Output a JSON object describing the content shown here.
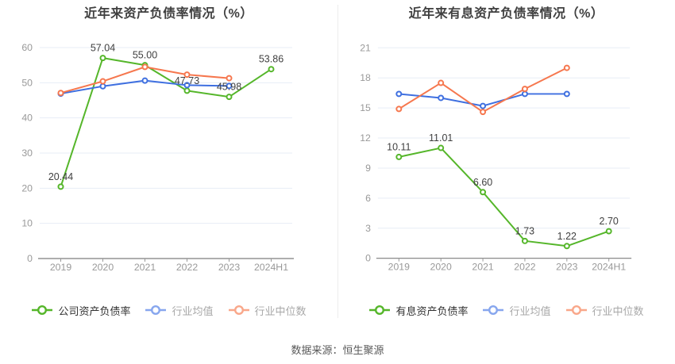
{
  "source_note": "数据来源：恒生聚源",
  "colors": {
    "grid": "#e7edf6",
    "axis_line": "#7d7d7d",
    "tick": "#999999",
    "tick_label": "#999999",
    "data_label": "#404040"
  },
  "chart_data": [
    {
      "type": "line",
      "title": "近年来资产负债率情况（%）",
      "categories": [
        "2019",
        "2020",
        "2021",
        "2022",
        "2023",
        "2024H1"
      ],
      "y_axis": {
        "min": 0,
        "max": 60,
        "step": 10
      },
      "grid": true,
      "legend_position": "bottom",
      "series": [
        {
          "name": "公司资产负债率",
          "color": "#55b62a",
          "legend_color": "#55b62a",
          "muted": false,
          "values": [
            20.44,
            57.04,
            55.0,
            47.73,
            45.98,
            53.86
          ],
          "labels": [
            "20.44",
            "57.04",
            "55.00",
            "47.73",
            "45.98",
            "53.86"
          ]
        },
        {
          "name": "行业均值",
          "color": "#3e6fe0",
          "legend_color": "#87a6ee",
          "muted": true,
          "values": [
            46.9,
            49.0,
            50.6,
            49.3,
            49.1,
            null
          ],
          "labels": null
        },
        {
          "name": "行业中位数",
          "color": "#f6774e",
          "legend_color": "#f9a78a",
          "muted": true,
          "values": [
            47.1,
            50.4,
            54.5,
            52.3,
            51.3,
            null
          ],
          "labels": null
        }
      ]
    },
    {
      "type": "line",
      "title": "近年来有息资产负债率情况（%）",
      "categories": [
        "2019",
        "2020",
        "2021",
        "2022",
        "2023",
        "2024H1"
      ],
      "y_axis": {
        "min": 0,
        "max": 21,
        "step": 3
      },
      "grid": true,
      "legend_position": "bottom",
      "series": [
        {
          "name": "有息资产负债率",
          "color": "#55b62a",
          "legend_color": "#55b62a",
          "muted": false,
          "values": [
            10.11,
            11.01,
            6.6,
            1.73,
            1.22,
            2.7
          ],
          "labels": [
            "10.11",
            "11.01",
            "6.60",
            "1.73",
            "1.22",
            "2.70"
          ]
        },
        {
          "name": "行业均值",
          "color": "#3e6fe0",
          "legend_color": "#87a6ee",
          "muted": true,
          "values": [
            16.4,
            16.0,
            15.2,
            16.4,
            16.4,
            null
          ],
          "labels": null
        },
        {
          "name": "行业中位数",
          "color": "#f6774e",
          "legend_color": "#f9a78a",
          "muted": true,
          "values": [
            14.9,
            17.5,
            14.6,
            16.9,
            19.0,
            null
          ],
          "labels": null
        }
      ]
    }
  ]
}
